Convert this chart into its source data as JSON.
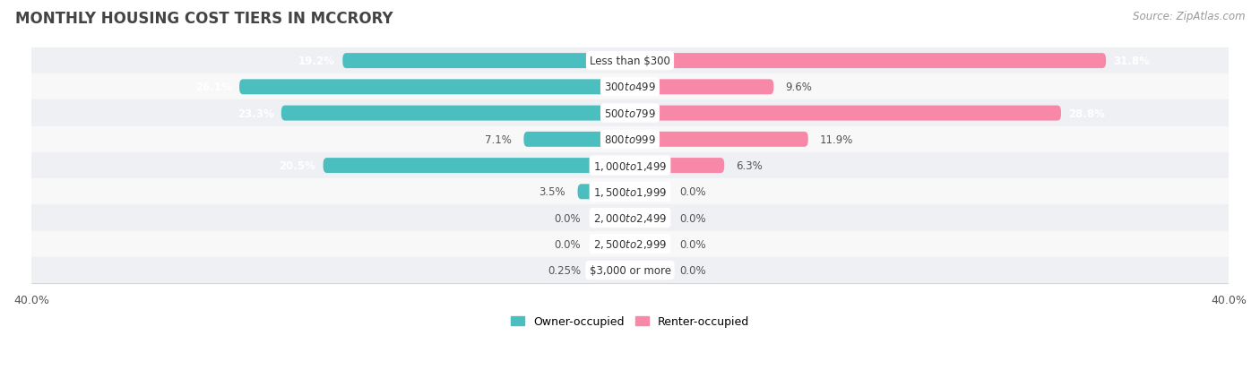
{
  "title": "MONTHLY HOUSING COST TIERS IN MCCRORY",
  "source": "Source: ZipAtlas.com",
  "categories": [
    "Less than $300",
    "$300 to $499",
    "$500 to $799",
    "$800 to $999",
    "$1,000 to $1,499",
    "$1,500 to $1,999",
    "$2,000 to $2,499",
    "$2,500 to $2,999",
    "$3,000 or more"
  ],
  "owner_values": [
    19.2,
    26.1,
    23.3,
    7.1,
    20.5,
    3.5,
    0.0,
    0.0,
    0.25
  ],
  "renter_values": [
    31.8,
    9.6,
    28.8,
    11.9,
    6.3,
    0.0,
    0.0,
    0.0,
    0.0
  ],
  "owner_color": "#4BBFBF",
  "renter_color": "#F888A8",
  "owner_label": "Owner-occupied",
  "renter_label": "Renter-occupied",
  "axis_limit": 40.0,
  "bar_height": 0.58,
  "min_stub": 2.5,
  "row_bg_color_odd": "#eef0f4",
  "row_bg_color_even": "#f8f8f8",
  "title_fontsize": 12,
  "source_fontsize": 8.5,
  "category_fontsize": 8.5,
  "value_fontsize": 8.5,
  "axis_label_fontsize": 9,
  "legend_fontsize": 9
}
